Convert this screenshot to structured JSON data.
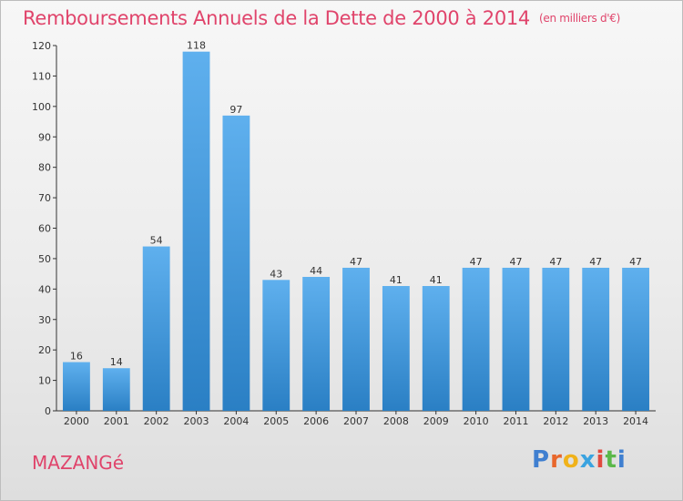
{
  "header": {
    "title": "Remboursements Annuels de la Dette de 2000 à 2014",
    "unit": "(en milliers d'€)"
  },
  "footer": {
    "commune": "MAZANGé",
    "logo": "Proxiti",
    "logo_letters": [
      {
        "char": "P",
        "color": "#3f7fd0"
      },
      {
        "char": "r",
        "color": "#e8672c"
      },
      {
        "char": "o",
        "color": "#f0b21a"
      },
      {
        "char": "x",
        "color": "#3aa3e0"
      },
      {
        "char": "i",
        "color": "#e04a3f"
      },
      {
        "char": "t",
        "color": "#5bb84a"
      },
      {
        "char": "i",
        "color": "#3f7fd0"
      }
    ]
  },
  "chart_data": {
    "type": "bar",
    "title": "Remboursements Annuels de la Dette de 2000 à 2014",
    "subtitle": "(en milliers d'€)",
    "categories": [
      "2000",
      "2001",
      "2002",
      "2003",
      "2004",
      "2005",
      "2006",
      "2007",
      "2008",
      "2009",
      "2010",
      "2011",
      "2012",
      "2013",
      "2014"
    ],
    "values": [
      16,
      14,
      54,
      118,
      97,
      43,
      44,
      47,
      41,
      41,
      47,
      47,
      47,
      47,
      47
    ],
    "ylim": [
      0,
      120
    ],
    "yticks": [
      0,
      10,
      20,
      30,
      40,
      50,
      60,
      70,
      80,
      90,
      100,
      110,
      120
    ],
    "grid": false,
    "bar_color_top": "#5fb0ee",
    "bar_color_bottom": "#2a7fc4"
  }
}
